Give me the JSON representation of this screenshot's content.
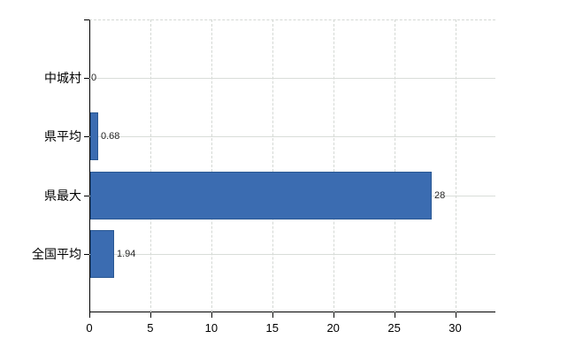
{
  "chart_data": {
    "type": "bar",
    "orientation": "horizontal",
    "title": "",
    "xlabel": "",
    "ylabel": "",
    "categories": [
      "中城村",
      "県平均",
      "県最大",
      "全国平均"
    ],
    "values": [
      0,
      0.68,
      28,
      1.94
    ],
    "data_labels": [
      "0",
      "0.68",
      "28",
      "1.94"
    ],
    "xticks": [
      0,
      5,
      10,
      15,
      20,
      25,
      30
    ],
    "xtick_labels": [
      "0",
      "5",
      "10",
      "15",
      "20",
      "25",
      "30"
    ],
    "xlim": [
      0,
      33.3
    ],
    "grid": true,
    "legend": false,
    "bar_color": "#3b6cb1",
    "bar_border_color": "#2a5893",
    "gridline_color": "#d9d9d9",
    "axis_color": "#000000",
    "data_label_color": "#262626"
  }
}
